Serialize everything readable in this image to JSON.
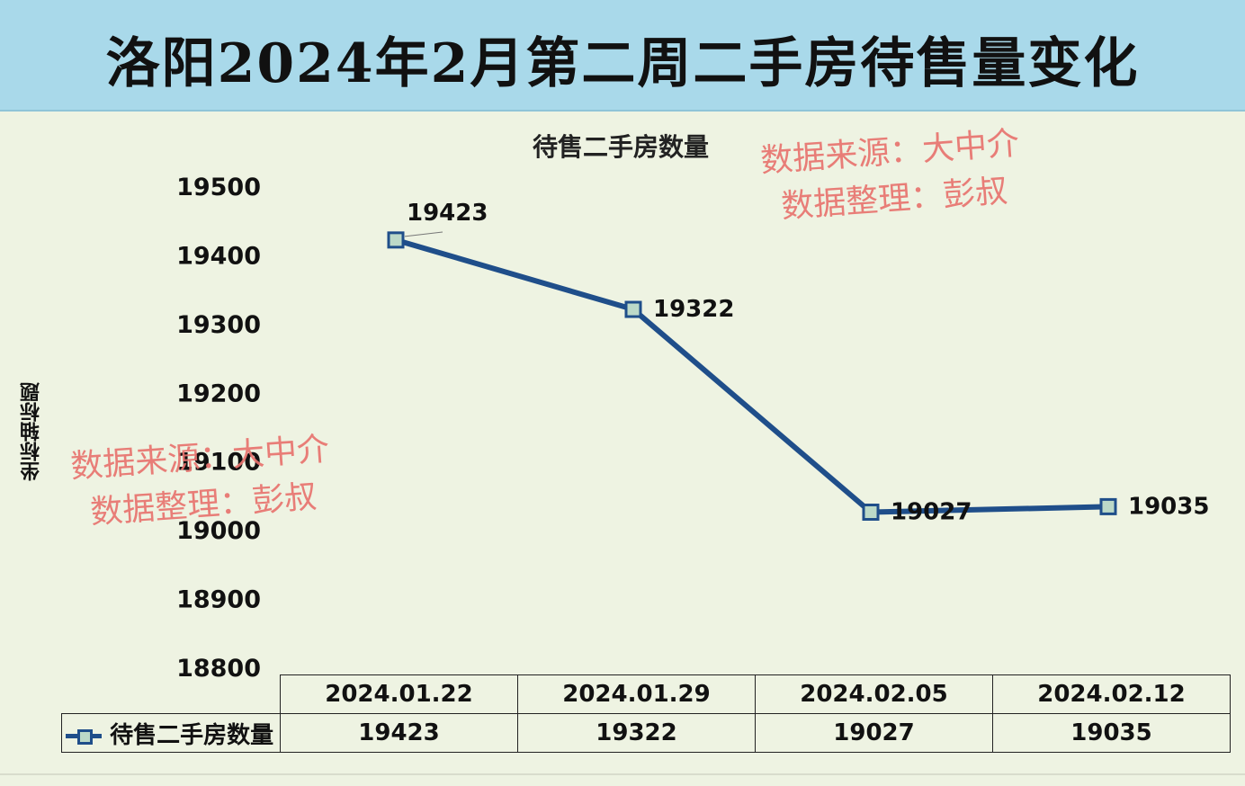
{
  "banner_title": "洛阳2024年2月第二周二手房待售量变化",
  "watermark": {
    "line1": "数据来源：大中介",
    "line2": "数据整理：彭叔"
  },
  "colors": {
    "banner": "#a9d9ea",
    "plot_background": "#eef3e2",
    "series_line": "#1f4e8a",
    "marker_fill": "#bcd9c8",
    "watermark": "#e8736f"
  },
  "chart_data": {
    "type": "line",
    "title": "待售二手房数量",
    "ylabel": "坐标轴标题",
    "xlabel": "",
    "categories": [
      "2024.01.22",
      "2024.01.29",
      "2024.02.05",
      "2024.02.12"
    ],
    "series": [
      {
        "name": "待售二手房数量",
        "values": [
          19423,
          19322,
          19027,
          19035
        ],
        "marker": "square"
      }
    ],
    "ylim": [
      18800,
      19500
    ],
    "yticks": [
      "19500",
      "19400",
      "19300",
      "19200",
      "19100",
      "19000",
      "18900",
      "18800"
    ],
    "data_labels": [
      "19423",
      "19322",
      "19027",
      "19035"
    ],
    "grid": false,
    "legend": "data-table",
    "table": {
      "row_label": "待售二手房数量",
      "values": [
        "19423",
        "19322",
        "19027",
        "19035"
      ]
    }
  }
}
